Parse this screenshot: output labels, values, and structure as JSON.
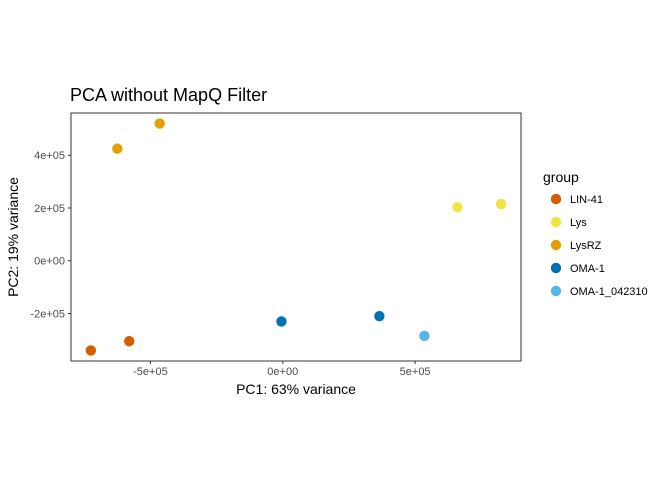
{
  "chart_data": {
    "type": "scatter",
    "title": "PCA without MapQ Filter",
    "xlabel": "PC1: 63% variance",
    "ylabel": "PC2: 19% variance",
    "xlim": [
      -800000,
      900000
    ],
    "ylim": [
      -380000,
      560000
    ],
    "x_ticks": [
      {
        "value": -500000,
        "label": "-5e+05"
      },
      {
        "value": 0,
        "label": "0e+00"
      },
      {
        "value": 500000,
        "label": "5e+05"
      }
    ],
    "y_ticks": [
      {
        "value": -200000,
        "label": "-2e+05"
      },
      {
        "value": 0,
        "label": "0e+00"
      },
      {
        "value": 200000,
        "label": "2e+05"
      },
      {
        "value": 400000,
        "label": "4e+05"
      }
    ],
    "grid": false,
    "legend": {
      "title": "group",
      "position": "right",
      "entries": [
        {
          "name": "LIN-41",
          "color": "#D55E00"
        },
        {
          "name": "Lys",
          "color": "#F0E442"
        },
        {
          "name": "LysRZ",
          "color": "#E69F00"
        },
        {
          "name": "OMA-1",
          "color": "#0072B2"
        },
        {
          "name": "OMA-1_042310",
          "color": "#56B4E9"
        }
      ]
    },
    "points": [
      {
        "group": "LIN-41",
        "x": -725000,
        "y": -340000
      },
      {
        "group": "LIN-41",
        "x": -580000,
        "y": -305000
      },
      {
        "group": "Lys",
        "x": 660000,
        "y": 203000
      },
      {
        "group": "Lys",
        "x": 825000,
        "y": 215000
      },
      {
        "group": "LysRZ",
        "x": -625000,
        "y": 425000
      },
      {
        "group": "LysRZ",
        "x": -465000,
        "y": 520000
      },
      {
        "group": "OMA-1",
        "x": -5000,
        "y": -230000
      },
      {
        "group": "OMA-1",
        "x": 365000,
        "y": -210000
      },
      {
        "group": "OMA-1_042310",
        "x": 535000,
        "y": -285000
      }
    ]
  }
}
